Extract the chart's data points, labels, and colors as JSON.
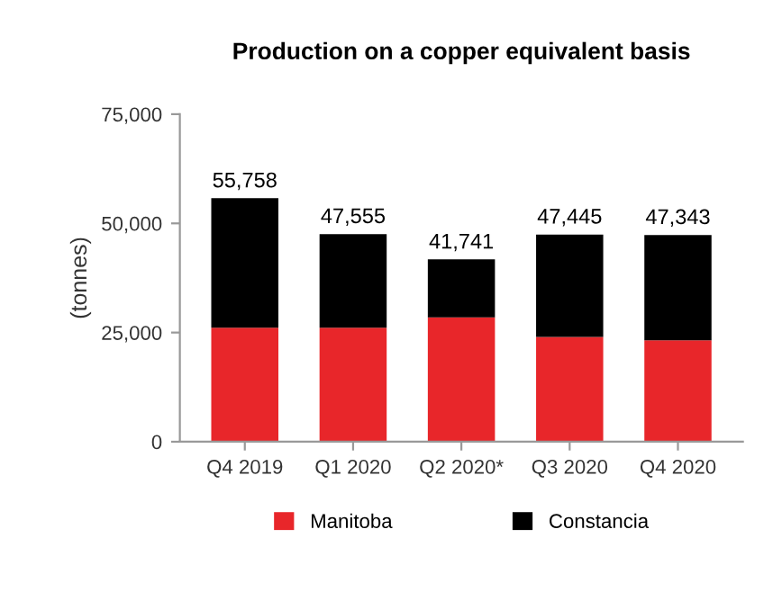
{
  "chart_data": {
    "type": "bar",
    "stacked": true,
    "title": "Production on a copper equivalent basis",
    "ylabel": "(tonnes)",
    "categories": [
      "Q4 2019",
      "Q1 2020",
      "Q2 2020*",
      "Q3 2020",
      "Q4 2020"
    ],
    "series": [
      {
        "name": "Manitoba",
        "color": "#e8262a",
        "values": [
          26100,
          26100,
          28500,
          24000,
          23200
        ]
      },
      {
        "name": "Constancia",
        "color": "#000000",
        "values": [
          29658,
          21455,
          13241,
          23445,
          24143
        ]
      }
    ],
    "totals": [
      "55,758",
      "47,555",
      "41,741",
      "47,445",
      "47,343"
    ],
    "ylim": [
      0,
      75000
    ],
    "yticks": [
      {
        "value": 0,
        "label": "0"
      },
      {
        "value": 25000,
        "label": "25,000"
      },
      {
        "value": 50000,
        "label": "50,000"
      },
      {
        "value": 75000,
        "label": "75,000"
      }
    ],
    "grid": false,
    "legend": "bottom"
  }
}
